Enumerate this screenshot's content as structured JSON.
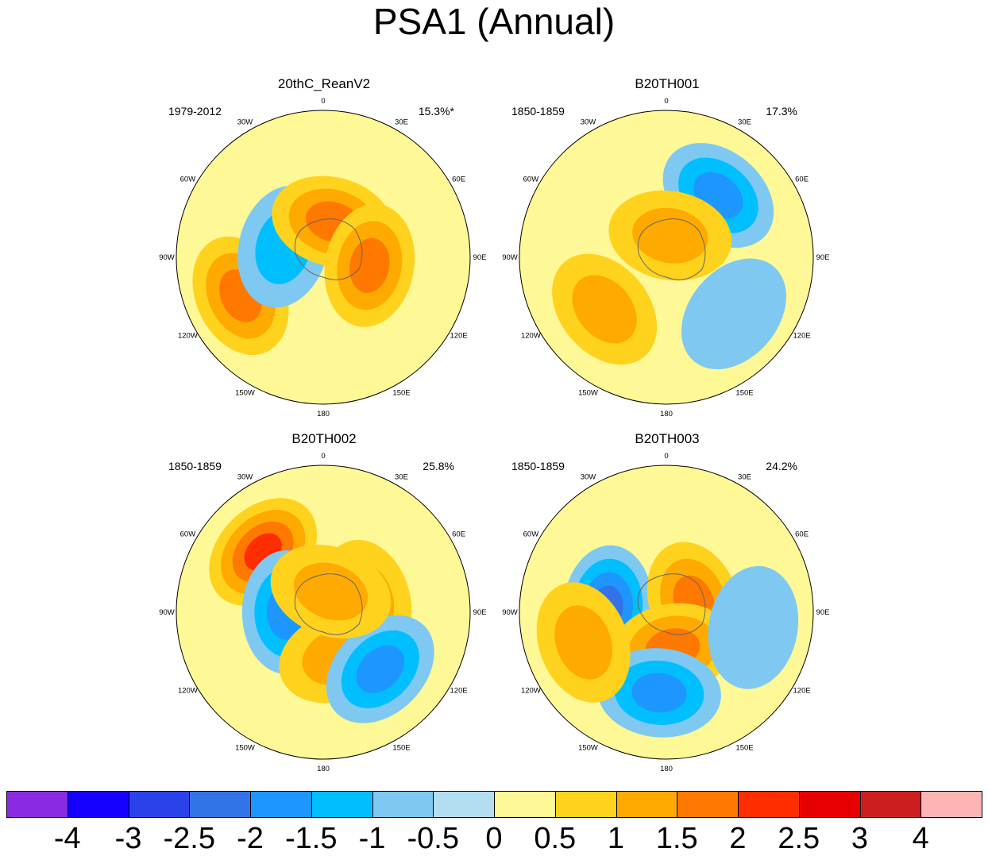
{
  "title": "PSA1 (Annual)",
  "chart_data": {
    "type": "polar-stereographic contour maps",
    "variable": "PSA1",
    "season": "Annual",
    "lon_labels": [
      "0",
      "30E",
      "60E",
      "90E",
      "120E",
      "150E",
      "180",
      "150W",
      "120W",
      "90W",
      "60W",
      "30W"
    ],
    "panels": [
      {
        "name": "20thC_ReanV2",
        "period": "1979-2012",
        "pct": "15.3%*",
        "centers": [
          {
            "lon": -115,
            "r": 0.62,
            "value": 1.5
          },
          {
            "lon": -75,
            "r": 0.28,
            "value": -1
          },
          {
            "lon": 15,
            "r": 0.25,
            "value": 1.5
          },
          {
            "lon": 100,
            "r": 0.32,
            "value": 1.5
          }
        ]
      },
      {
        "name": "B20TH001",
        "period": "1850-1859",
        "pct": "17.3%",
        "centers": [
          {
            "lon": 40,
            "r": 0.55,
            "value": -1.5
          },
          {
            "lon": -130,
            "r": 0.55,
            "value": 1
          },
          {
            "lon": 10,
            "r": 0.15,
            "value": 1
          },
          {
            "lon": 130,
            "r": 0.6,
            "value": -0.5
          }
        ]
      },
      {
        "name": "B20TH002",
        "period": "1850-1859",
        "pct": "25.8%",
        "centers": [
          {
            "lon": -45,
            "r": 0.58,
            "value": 2
          },
          {
            "lon": -90,
            "r": 0.25,
            "value": -1.5
          },
          {
            "lon": 75,
            "r": 0.3,
            "value": 1
          },
          {
            "lon": 160,
            "r": 0.32,
            "value": 1
          },
          {
            "lon": 135,
            "r": 0.55,
            "value": -1.5
          },
          {
            "lon": 20,
            "r": 0.15,
            "value": 1
          }
        ]
      },
      {
        "name": "B20TH003",
        "period": "1850-1859",
        "pct": "24.2%",
        "centers": [
          {
            "lon": -85,
            "r": 0.4,
            "value": -2
          },
          {
            "lon": 70,
            "r": 0.2,
            "value": 1.5
          },
          {
            "lon": 170,
            "r": 0.25,
            "value": 1.5
          },
          {
            "lon": -175,
            "r": 0.55,
            "value": -1.5
          },
          {
            "lon": 100,
            "r": 0.6,
            "value": -0.5
          },
          {
            "lon": -110,
            "r": 0.6,
            "value": 1
          }
        ]
      }
    ],
    "colorbar": {
      "labels": [
        "-4",
        "-3",
        "-2.5",
        "-2",
        "-1.5",
        "-1",
        "-0.5",
        "0",
        "0.5",
        "1",
        "1.5",
        "2",
        "2.5",
        "3",
        "4"
      ],
      "colors": [
        "#8a2be2",
        "#1400ff",
        "#2b42ea",
        "#3373e8",
        "#1e96ff",
        "#00bfff",
        "#7ec8f2",
        "#b3def2",
        "#fff896",
        "#ffd21e",
        "#ffaa00",
        "#ff7800",
        "#ff2d00",
        "#e60000",
        "#cc1e1e",
        "#ffb4b4"
      ]
    }
  }
}
